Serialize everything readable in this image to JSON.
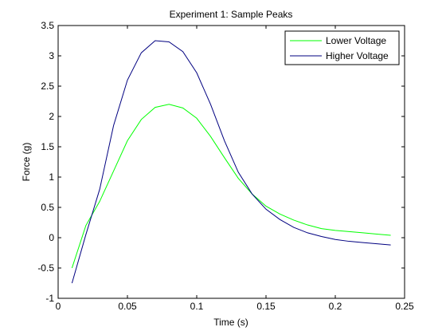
{
  "chart_data": {
    "type": "line",
    "title": "Experiment 1: Sample Peaks",
    "xlabel": "Time (s)",
    "ylabel": "Force (g)",
    "xlim": [
      0,
      0.25
    ],
    "ylim": [
      -1,
      3.5
    ],
    "xticks": [
      0,
      0.05,
      0.1,
      0.15,
      0.2,
      0.25
    ],
    "xtick_labels": [
      "0",
      "0.05",
      "0.1",
      "0.15",
      "0.2",
      "0.25"
    ],
    "yticks": [
      -1,
      -0.5,
      0,
      0.5,
      1,
      1.5,
      2,
      2.5,
      3,
      3.5
    ],
    "ytick_labels": [
      "-1",
      "-0.5",
      "0",
      "0.5",
      "1",
      "1.5",
      "2",
      "2.5",
      "3",
      "3.5"
    ],
    "grid": false,
    "legend_position": "top-right",
    "series": [
      {
        "name": "Lower Voltage",
        "color": "#00ff00",
        "x": [
          0.01,
          0.02,
          0.03,
          0.04,
          0.05,
          0.06,
          0.07,
          0.08,
          0.09,
          0.1,
          0.11,
          0.12,
          0.13,
          0.14,
          0.15,
          0.16,
          0.17,
          0.18,
          0.19,
          0.2,
          0.21,
          0.22,
          0.23,
          0.24
        ],
        "y": [
          -0.5,
          0.2,
          0.6,
          1.1,
          1.6,
          1.95,
          2.15,
          2.2,
          2.14,
          1.97,
          1.67,
          1.32,
          0.98,
          0.72,
          0.52,
          0.39,
          0.29,
          0.21,
          0.15,
          0.12,
          0.1,
          0.08,
          0.06,
          0.04
        ]
      },
      {
        "name": "Higher Voltage",
        "color": "#000080",
        "x": [
          0.01,
          0.02,
          0.03,
          0.04,
          0.05,
          0.06,
          0.07,
          0.08,
          0.09,
          0.1,
          0.11,
          0.12,
          0.13,
          0.14,
          0.15,
          0.16,
          0.17,
          0.18,
          0.19,
          0.2,
          0.21,
          0.22,
          0.23,
          0.24
        ],
        "y": [
          -0.75,
          0.05,
          0.8,
          1.85,
          2.6,
          3.05,
          3.25,
          3.23,
          3.07,
          2.72,
          2.2,
          1.6,
          1.08,
          0.72,
          0.47,
          0.3,
          0.17,
          0.08,
          0.02,
          -0.03,
          -0.06,
          -0.08,
          -0.1,
          -0.12
        ]
      }
    ]
  }
}
